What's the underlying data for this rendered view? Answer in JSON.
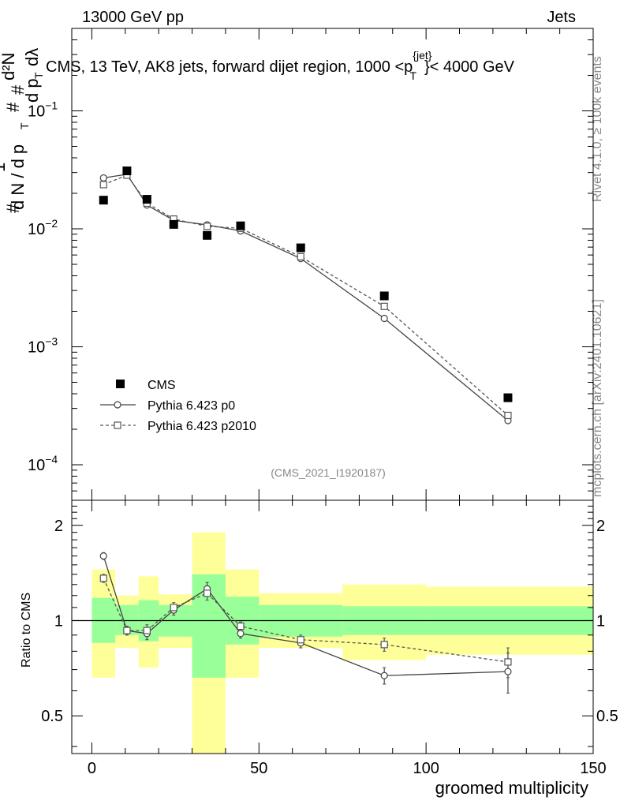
{
  "header": {
    "left": "13000 GeV pp",
    "right": "Jets"
  },
  "side": {
    "rivet": "Rivet 4.1.0, ≥ 100k events",
    "mcplots": "mcplots.cern.ch [arXiv:2401.10621]"
  },
  "analysis_tag": "(CMS_2021_I1920187)",
  "ylabel_top": {
    "hash1": "#",
    "d1": "d N / d p",
    "T1": "T",
    "one": "1",
    "hash2": "#",
    "d2": "d p",
    "T2": "T",
    "dl": "dλ",
    "d2N": "d²N",
    "hash3": "#"
  },
  "colors": {
    "data": "#000000",
    "p0": "#444444",
    "p2010": "#555555",
    "band_outer": "#ffff99",
    "band_inner": "#99ff99"
  },
  "chart_data": [
    {
      "panel": "main",
      "type": "line",
      "title": "CMS, 13 TeV, AK8 jets, forward dijet region, 1000 <p",
      "title_sup": "{jet}",
      "title_sub": "T",
      "title_end": "}< 4000 GeV",
      "xlabel": "groomed multiplicity",
      "yscale": "log",
      "xlim": [
        -6,
        150
      ],
      "ylim": [
        5e-05,
        0.5
      ],
      "yticks": [
        {
          "v": 0.1,
          "base": "10",
          "exp": "−1"
        },
        {
          "v": 0.01,
          "base": "10",
          "exp": "−2"
        },
        {
          "v": 0.001,
          "base": "10",
          "exp": "−3"
        },
        {
          "v": 0.0001,
          "base": "10",
          "exp": "−4"
        }
      ],
      "series": [
        {
          "name": "CMS",
          "marker": "square-filled",
          "x": [
            3.5,
            10.5,
            16.5,
            24.5,
            34.5,
            44.5,
            62.5,
            87.5,
            124.5
          ],
          "y": [
            0.0175,
            0.031,
            0.0178,
            0.0109,
            0.0088,
            0.0106,
            0.0069,
            0.0027,
            0.00037
          ]
        },
        {
          "name": "Pythia 6.423 p0",
          "marker": "circle-open",
          "line": "solid",
          "x": [
            3.5,
            10.5,
            16.5,
            24.5,
            34.5,
            44.5,
            62.5,
            87.5,
            124.5
          ],
          "y": [
            0.027,
            0.029,
            0.0159,
            0.0118,
            0.0108,
            0.0096,
            0.0056,
            0.00174,
            0.000237
          ]
        },
        {
          "name": "Pythia 6.423 p2010",
          "marker": "square-open",
          "line": "dashed",
          "x": [
            3.5,
            10.5,
            16.5,
            24.5,
            34.5,
            44.5,
            62.5,
            87.5,
            124.5
          ],
          "y": [
            0.0237,
            0.0285,
            0.0165,
            0.0121,
            0.0105,
            0.0101,
            0.0058,
            0.0022,
            0.000262
          ]
        }
      ],
      "legend": [
        "CMS",
        "Pythia 6.423 p0",
        "Pythia 6.423 p2010"
      ]
    },
    {
      "panel": "ratio",
      "type": "line",
      "ylabel": "Ratio to CMS",
      "xlabel": "groomed multiplicity",
      "yscale": "log",
      "xlim": [
        -6,
        150
      ],
      "ylim": [
        0.38,
        2.4
      ],
      "yticks": [
        {
          "v": 2,
          "label": "2"
        },
        {
          "v": 1,
          "label": "1"
        },
        {
          "v": 0.5,
          "label": "0.5"
        }
      ],
      "xticks": [
        0,
        50,
        100,
        150
      ],
      "bins": [
        {
          "lo": 0,
          "hi": 7,
          "inner": [
            0.85,
            1.18
          ],
          "outer": [
            0.66,
            1.45
          ]
        },
        {
          "lo": 7,
          "hi": 14,
          "inner": [
            0.9,
            1.12
          ],
          "outer": [
            0.82,
            1.2
          ]
        },
        {
          "lo": 14,
          "hi": 20,
          "inner": [
            0.86,
            1.16
          ],
          "outer": [
            0.71,
            1.38
          ]
        },
        {
          "lo": 20,
          "hi": 30,
          "inner": [
            0.89,
            1.12
          ],
          "outer": [
            0.82,
            1.21
          ]
        },
        {
          "lo": 30,
          "hi": 40,
          "inner": [
            0.66,
            1.4
          ],
          "outer": [
            0.38,
            1.9
          ]
        },
        {
          "lo": 40,
          "hi": 50,
          "inner": [
            0.84,
            1.19
          ],
          "outer": [
            0.66,
            1.45
          ]
        },
        {
          "lo": 50,
          "hi": 75,
          "inner": [
            0.89,
            1.12
          ],
          "outer": [
            0.82,
            1.22
          ]
        },
        {
          "lo": 75,
          "hi": 100,
          "inner": [
            0.9,
            1.11
          ],
          "outer": [
            0.75,
            1.3
          ]
        },
        {
          "lo": 100,
          "hi": 150,
          "inner": [
            0.9,
            1.11
          ],
          "outer": [
            0.78,
            1.28
          ]
        }
      ],
      "reference": 1,
      "series": [
        {
          "name": "Pythia 6.423 p0",
          "marker": "circle-open",
          "line": "solid",
          "x": [
            3.5,
            10.5,
            16.5,
            24.5,
            34.5,
            44.5,
            62.5,
            87.5,
            124.5
          ],
          "y": [
            1.6,
            0.93,
            0.91,
            1.08,
            1.26,
            0.91,
            0.85,
            0.67,
            0.69
          ],
          "err": [
            0.04,
            0.03,
            0.04,
            0.04,
            0.06,
            0.03,
            0.03,
            0.04,
            0.1
          ]
        },
        {
          "name": "Pythia 6.423 p2010",
          "marker": "square-open",
          "line": "dashed",
          "x": [
            3.5,
            10.5,
            16.5,
            24.5,
            34.5,
            44.5,
            62.5,
            87.5,
            124.5
          ],
          "y": [
            1.36,
            0.93,
            0.93,
            1.1,
            1.22,
            0.96,
            0.87,
            0.84,
            0.74
          ],
          "err": [
            0.04,
            0.03,
            0.04,
            0.04,
            0.06,
            0.03,
            0.03,
            0.04,
            0.08
          ]
        }
      ]
    }
  ]
}
